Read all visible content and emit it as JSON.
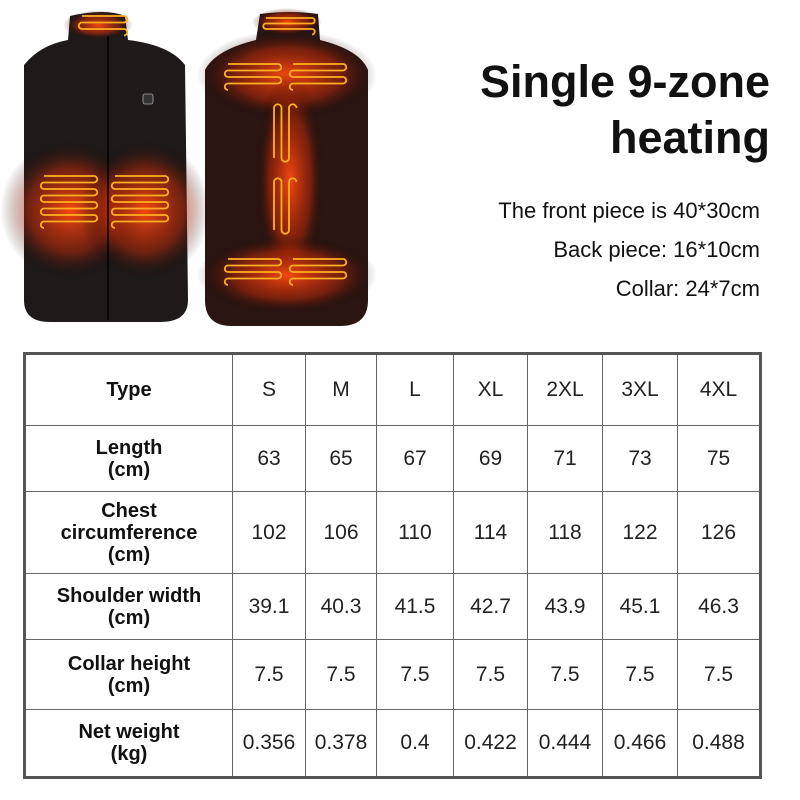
{
  "heading": {
    "line1": "Single 9-zone",
    "line2": "heating"
  },
  "specs": [
    "The front piece is 40*30cm",
    "Back piece: 16*10cm",
    "Collar: 24*7cm"
  ],
  "colors": {
    "heater": "#ff6a1a",
    "vest": "#1c1c1c"
  },
  "table": {
    "header": {
      "label": "Type",
      "sizes": [
        "S",
        "M",
        "L",
        "XL",
        "2XL",
        "3XL",
        "4XL"
      ]
    },
    "rows": [
      {
        "label": [
          "Length",
          "(cm)"
        ],
        "values": [
          "63",
          "65",
          "67",
          "69",
          "71",
          "73",
          "75"
        ]
      },
      {
        "label": [
          "Chest",
          "circumference",
          "(cm)"
        ],
        "values": [
          "102",
          "106",
          "110",
          "114",
          "118",
          "122",
          "126"
        ]
      },
      {
        "label": [
          "Shoulder width",
          "(cm)"
        ],
        "values": [
          "39.1",
          "40.3",
          "41.5",
          "42.7",
          "43.9",
          "45.1",
          "46.3"
        ]
      },
      {
        "label": [
          "Collar height",
          "(cm)"
        ],
        "values": [
          "7.5",
          "7.5",
          "7.5",
          "7.5",
          "7.5",
          "7.5",
          "7.5"
        ]
      },
      {
        "label": [
          "Net weight",
          "(kg)"
        ],
        "values": [
          "0.356",
          "0.378",
          "0.4",
          "0.422",
          "0.444",
          "0.466",
          "0.488"
        ]
      }
    ]
  }
}
